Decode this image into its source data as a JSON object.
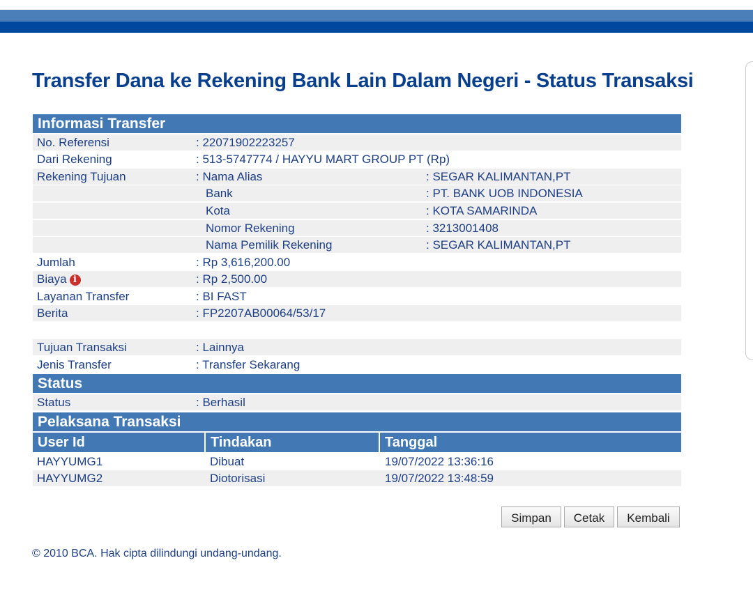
{
  "title": "Transfer Dana ke Rekening Bank Lain Dalam Negeri - Status Transaksi",
  "sections": {
    "info": "Informasi Transfer",
    "status": "Status",
    "pelaksana": "Pelaksana Transaksi"
  },
  "info": {
    "ref_label": "No. Referensi",
    "ref": ": 22071902223257",
    "dari_label": "Dari Rekening",
    "dari": ": 513-5747774 / HAYYU MART GROUP PT  (Rp)",
    "tujuan_label": "Rekening Tujuan",
    "tujuan": [
      {
        "label": ": Nama Alias",
        "value": ": SEGAR KALIMANTAN,PT"
      },
      {
        "label": "Bank",
        "value": ": PT. BANK UOB INDONESIA"
      },
      {
        "label": "Kota",
        "value": ": KOTA SAMARINDA"
      },
      {
        "label": "Nomor Rekening",
        "value": ": 3213001408"
      },
      {
        "label": "Nama Pemilik Rekening",
        "value": ": SEGAR KALIMANTAN,PT"
      }
    ],
    "jumlah_label": "Jumlah",
    "jumlah": ": Rp 3,616,200.00",
    "biaya_label": "Biaya",
    "biaya": ": Rp 2,500.00",
    "info_icon": "i",
    "layanan_label": "Layanan Transfer",
    "layanan": ": BI FAST",
    "berita_label": "Berita",
    "berita": ": FP2207AB00064/53/17",
    "tujuan_trx_label": "Tujuan Transaksi",
    "tujuan_trx": ":  Lainnya",
    "jenis_label": "Jenis Transfer",
    "jenis": ": Transfer Sekarang"
  },
  "status": {
    "label": "Status",
    "value": ":  Berhasil"
  },
  "pelaksana": {
    "columns": [
      "User Id",
      "Tindakan",
      "Tanggal"
    ],
    "rows": [
      [
        "HAYYUMG1",
        "Dibuat",
        "19/07/2022 13:36:16"
      ],
      [
        "HAYYUMG2",
        "Diotorisasi",
        "19/07/2022 13:48:59"
      ]
    ]
  },
  "buttons": {
    "simpan": "Simpan",
    "cetak": "Cetak",
    "kembali": "Kembali"
  },
  "footer": "©  2010 BCA. Hak cipta dilindungi undang-undang."
}
